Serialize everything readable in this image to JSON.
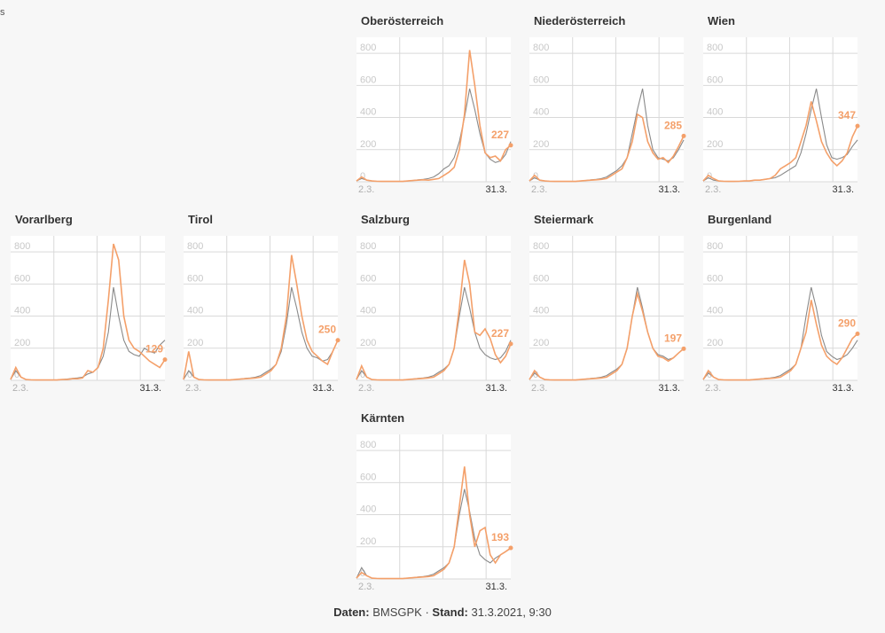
{
  "corner_fragment": "s",
  "colors": {
    "series_orange": "#f4a06a",
    "series_gray": "#8a8a8a",
    "grid": "#d9d9d9",
    "tick": "#c8c8c8",
    "value_label": "#f4a06a"
  },
  "chart_data": [
    {
      "type": "line",
      "title": "Oberösterreich",
      "ylim": [
        0,
        900
      ],
      "yticks": [
        0,
        200,
        400,
        600,
        800
      ],
      "x_tick_labels": [
        "2.3.",
        "31.3."
      ],
      "end_value_label": "227",
      "series": [
        {
          "values": [
            5,
            30,
            10,
            5,
            3,
            2,
            2,
            3,
            2,
            2,
            5,
            8,
            10,
            12,
            10,
            15,
            20,
            40,
            60,
            90,
            200,
            420,
            820,
            600,
            350,
            180,
            150,
            160,
            130,
            200,
            227
          ]
        },
        {
          "values": [
            5,
            20,
            10,
            5,
            3,
            2,
            2,
            3,
            2,
            2,
            5,
            8,
            12,
            15,
            20,
            30,
            50,
            80,
            100,
            150,
            250,
            400,
            580,
            450,
            300,
            180,
            140,
            120,
            130,
            170,
            250
          ]
        }
      ]
    },
    {
      "type": "line",
      "title": "Niederösterreich",
      "ylim": [
        0,
        900
      ],
      "yticks": [
        0,
        200,
        400,
        600,
        800
      ],
      "x_tick_labels": [
        "2.3.",
        "31.3."
      ],
      "end_value_label": "285",
      "series": [
        {
          "values": [
            5,
            40,
            10,
            5,
            3,
            2,
            2,
            3,
            2,
            2,
            5,
            8,
            10,
            12,
            15,
            20,
            40,
            60,
            80,
            150,
            250,
            420,
            400,
            250,
            180,
            140,
            150,
            120,
            160,
            220,
            285
          ]
        },
        {
          "values": [
            5,
            25,
            10,
            5,
            3,
            2,
            2,
            3,
            2,
            2,
            5,
            8,
            12,
            15,
            20,
            30,
            50,
            70,
            100,
            150,
            300,
            450,
            580,
            350,
            200,
            150,
            140,
            130,
            150,
            200,
            260
          ]
        }
      ]
    },
    {
      "type": "line",
      "title": "Wien",
      "ylim": [
        0,
        900
      ],
      "yticks": [
        0,
        200,
        400,
        600,
        800
      ],
      "x_tick_labels": [
        "2.3.",
        "31.3."
      ],
      "end_value_label": "347",
      "series": [
        {
          "values": [
            5,
            40,
            20,
            5,
            3,
            2,
            2,
            3,
            5,
            5,
            10,
            10,
            15,
            20,
            40,
            80,
            100,
            120,
            150,
            250,
            350,
            500,
            380,
            250,
            180,
            130,
            100,
            130,
            180,
            280,
            347
          ]
        },
        {
          "values": [
            5,
            25,
            10,
            5,
            3,
            2,
            2,
            3,
            5,
            5,
            10,
            10,
            15,
            20,
            25,
            40,
            60,
            80,
            100,
            180,
            300,
            450,
            580,
            400,
            230,
            150,
            140,
            150,
            170,
            220,
            260
          ]
        }
      ]
    },
    {
      "type": "line",
      "title": "Vorarlberg",
      "ylim": [
        0,
        900
      ],
      "yticks": [
        0,
        200,
        400,
        600,
        800
      ],
      "x_tick_labels": [
        "2.3.",
        "31.3."
      ],
      "end_value_label": "129",
      "series": [
        {
          "values": [
            5,
            80,
            20,
            5,
            3,
            2,
            2,
            3,
            2,
            2,
            5,
            5,
            10,
            10,
            15,
            60,
            50,
            80,
            200,
            500,
            850,
            750,
            400,
            250,
            200,
            180,
            150,
            120,
            100,
            80,
            129
          ]
        },
        {
          "values": [
            5,
            60,
            20,
            5,
            3,
            2,
            2,
            3,
            2,
            2,
            5,
            8,
            12,
            15,
            20,
            40,
            50,
            80,
            150,
            300,
            580,
            400,
            250,
            180,
            160,
            150,
            200,
            180,
            170,
            220,
            250
          ]
        }
      ]
    },
    {
      "type": "line",
      "title": "Tirol",
      "ylim": [
        0,
        900
      ],
      "yticks": [
        0,
        200,
        400,
        600,
        800
      ],
      "x_tick_labels": [
        "2.3.",
        "31.3."
      ],
      "end_value_label": "250",
      "series": [
        {
          "values": [
            5,
            180,
            20,
            5,
            3,
            2,
            2,
            3,
            2,
            2,
            5,
            8,
            10,
            12,
            15,
            20,
            40,
            60,
            100,
            200,
            400,
            780,
            600,
            400,
            250,
            180,
            150,
            120,
            100,
            180,
            250
          ]
        },
        {
          "values": [
            5,
            60,
            20,
            5,
            3,
            2,
            2,
            3,
            2,
            2,
            5,
            8,
            12,
            15,
            20,
            30,
            50,
            70,
            100,
            180,
            350,
            580,
            450,
            300,
            200,
            150,
            140,
            120,
            130,
            180,
            250
          ]
        }
      ]
    },
    {
      "type": "line",
      "title": "Salzburg",
      "ylim": [
        0,
        900
      ],
      "yticks": [
        0,
        200,
        400,
        600,
        800
      ],
      "x_tick_labels": [
        "2.3.",
        "31.3."
      ],
      "end_value_label": "227",
      "series": [
        {
          "values": [
            5,
            90,
            20,
            5,
            3,
            2,
            2,
            3,
            2,
            2,
            5,
            8,
            10,
            12,
            15,
            20,
            40,
            60,
            100,
            200,
            450,
            750,
            600,
            300,
            280,
            320,
            260,
            160,
            110,
            150,
            227
          ]
        },
        {
          "values": [
            5,
            60,
            20,
            5,
            3,
            2,
            2,
            3,
            2,
            2,
            5,
            8,
            12,
            15,
            20,
            30,
            50,
            70,
            100,
            200,
            400,
            580,
            450,
            300,
            200,
            160,
            140,
            130,
            140,
            180,
            250
          ]
        }
      ]
    },
    {
      "type": "line",
      "title": "Steiermark",
      "ylim": [
        0,
        900
      ],
      "yticks": [
        0,
        200,
        400,
        600,
        800
      ],
      "x_tick_labels": [
        "2.3.",
        "31.3."
      ],
      "end_value_label": "197",
      "series": [
        {
          "values": [
            5,
            60,
            20,
            5,
            3,
            2,
            2,
            3,
            2,
            2,
            5,
            8,
            10,
            12,
            15,
            20,
            40,
            60,
            100,
            200,
            400,
            540,
            430,
            300,
            200,
            150,
            140,
            120,
            140,
            170,
            197
          ]
        },
        {
          "values": [
            5,
            45,
            20,
            5,
            3,
            2,
            2,
            3,
            2,
            2,
            5,
            8,
            12,
            15,
            20,
            30,
            50,
            70,
            100,
            200,
            400,
            580,
            450,
            300,
            200,
            160,
            150,
            130,
            140,
            170,
            200
          ]
        }
      ]
    },
    {
      "type": "line",
      "title": "Burgenland",
      "ylim": [
        0,
        900
      ],
      "yticks": [
        0,
        200,
        400,
        600,
        800
      ],
      "x_tick_labels": [
        "2.3.",
        "31.3."
      ],
      "end_value_label": "290",
      "series": [
        {
          "values": [
            5,
            60,
            20,
            5,
            3,
            2,
            2,
            3,
            2,
            2,
            5,
            8,
            10,
            12,
            15,
            20,
            40,
            60,
            100,
            200,
            300,
            500,
            350,
            220,
            150,
            120,
            100,
            140,
            200,
            260,
            290
          ]
        },
        {
          "values": [
            5,
            45,
            20,
            5,
            3,
            2,
            2,
            3,
            2,
            2,
            5,
            8,
            12,
            15,
            20,
            30,
            50,
            70,
            100,
            200,
            400,
            580,
            450,
            280,
            180,
            150,
            130,
            140,
            160,
            200,
            250
          ]
        }
      ]
    },
    {
      "type": "line",
      "title": "Kärnten",
      "ylim": [
        0,
        900
      ],
      "yticks": [
        0,
        200,
        400,
        600,
        800
      ],
      "x_tick_labels": [
        "2.3.",
        "31.3."
      ],
      "end_value_label": "193",
      "series": [
        {
          "values": [
            5,
            40,
            20,
            5,
            3,
            2,
            2,
            3,
            2,
            2,
            5,
            8,
            10,
            12,
            15,
            20,
            40,
            60,
            100,
            200,
            450,
            700,
            400,
            200,
            300,
            320,
            150,
            100,
            150,
            170,
            193
          ]
        },
        {
          "values": [
            5,
            70,
            20,
            5,
            3,
            2,
            2,
            3,
            2,
            2,
            5,
            8,
            12,
            15,
            20,
            30,
            50,
            70,
            100,
            200,
            400,
            560,
            420,
            250,
            150,
            120,
            100,
            130,
            150,
            170,
            190
          ]
        }
      ]
    }
  ],
  "footer": {
    "source_label": "Daten:",
    "source_value": "BMSGPK",
    "separator": "·",
    "date_label": "Stand:",
    "date_value": "31.3.2021, 9:30"
  }
}
